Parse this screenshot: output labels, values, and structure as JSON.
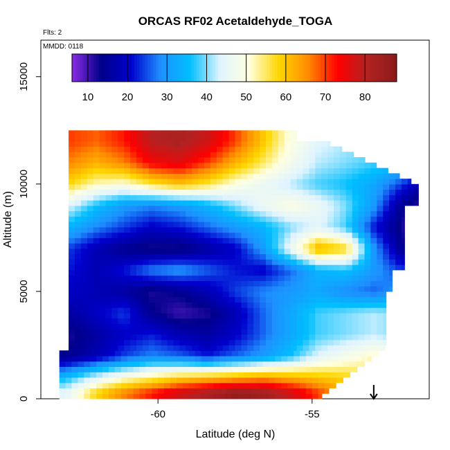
{
  "chart_data": {
    "type": "heatmap",
    "title": "ORCAS RF02 Acetaldehyde_TOGA",
    "flights_label": "Flts: 2",
    "date_label": "MMDD: 0118",
    "xlabel": "Latitude (deg N)",
    "ylabel": "Altitude (m)",
    "xlim": [
      -63.8,
      -51.2
    ],
    "ylim": [
      0,
      16700
    ],
    "xticks": [
      -60,
      -55
    ],
    "yticks": [
      0,
      5000,
      10000,
      15000
    ],
    "colorbar": {
      "range": [
        6,
        88
      ],
      "ticks": [
        10,
        20,
        30,
        40,
        50,
        60,
        70,
        80
      ],
      "colors": [
        "#8a2be2",
        "#00008b",
        "#0000cd",
        "#1e90ff",
        "#00bfff",
        "#e0f4ff",
        "#ffffe0",
        "#ffd700",
        "#ff8c00",
        "#ff0000",
        "#b22222",
        "#8b1a1a"
      ]
    },
    "marker_latitude": -53.0,
    "grid": false,
    "bands": [
      {
        "alt": 12000,
        "values": [
          72,
          70,
          68,
          72,
          80,
          82,
          78,
          70,
          60,
          50,
          44,
          42,
          40,
          38,
          36
        ]
      },
      {
        "alt": 11000,
        "values": [
          70,
          66,
          62,
          66,
          74,
          76,
          70,
          62,
          55,
          48,
          42,
          40,
          38,
          36,
          34
        ]
      },
      {
        "alt": 10000,
        "values": [
          64,
          58,
          52,
          50,
          56,
          60,
          56,
          50,
          46,
          42,
          38,
          36,
          32,
          24,
          14
        ]
      },
      {
        "alt": 9000,
        "values": [
          52,
          44,
          36,
          30,
          28,
          30,
          34,
          40,
          46,
          50,
          46,
          40,
          30,
          14,
          10
        ]
      },
      {
        "alt": 8000,
        "values": [
          40,
          34,
          28,
          24,
          20,
          22,
          26,
          30,
          34,
          40,
          44,
          38,
          22,
          12,
          10
        ]
      },
      {
        "alt": 7000,
        "values": [
          30,
          24,
          18,
          14,
          12,
          12,
          16,
          20,
          30,
          46,
          62,
          58,
          30,
          14,
          12
        ]
      },
      {
        "alt": 6000,
        "values": [
          28,
          22,
          18,
          22,
          28,
          30,
          26,
          22,
          20,
          26,
          34,
          36,
          30,
          24,
          26
        ]
      },
      {
        "alt": 5000,
        "values": [
          24,
          20,
          18,
          16,
          12,
          14,
          18,
          24,
          28,
          30,
          32,
          28,
          26,
          30,
          34
        ]
      },
      {
        "alt": 4000,
        "values": [
          18,
          16,
          20,
          24,
          14,
          10,
          12,
          18,
          26,
          32,
          38,
          40,
          42,
          40,
          40
        ]
      },
      {
        "alt": 3000,
        "values": [
          14,
          12,
          16,
          20,
          22,
          18,
          16,
          20,
          26,
          32,
          38,
          40,
          42,
          40,
          40
        ]
      },
      {
        "alt": 2000,
        "values": [
          12,
          14,
          18,
          24,
          28,
          26,
          22,
          26,
          30,
          36,
          44,
          48,
          52,
          48,
          44
        ]
      },
      {
        "alt": 1000,
        "values": [
          30,
          36,
          44,
          50,
          54,
          58,
          60,
          62,
          64,
          62,
          60,
          58,
          56,
          54,
          50
        ]
      },
      {
        "alt": 300,
        "values": [
          40,
          46,
          58,
          66,
          72,
          78,
          82,
          86,
          84,
          78,
          70,
          62,
          56,
          52,
          48
        ]
      }
    ]
  }
}
